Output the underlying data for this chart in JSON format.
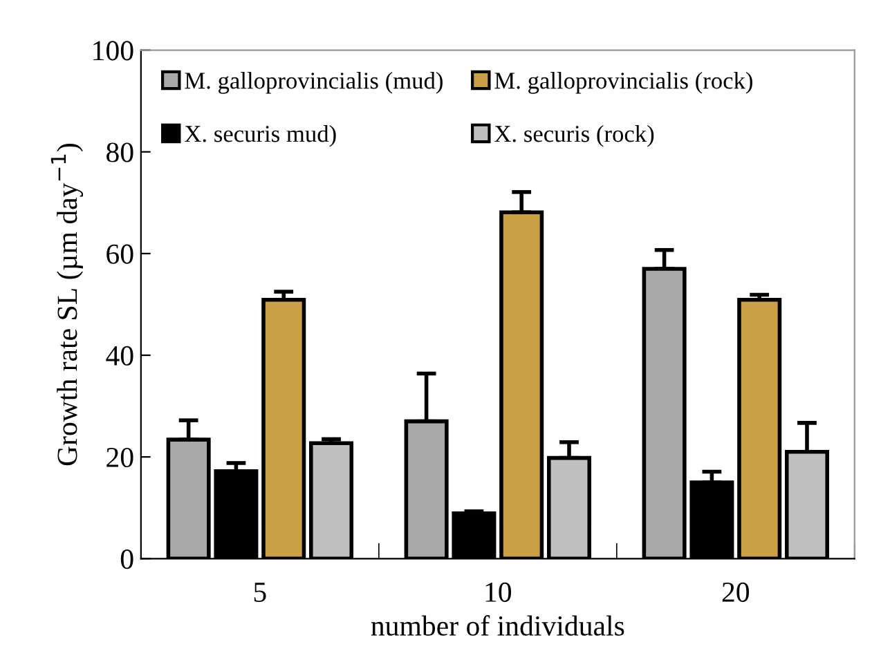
{
  "chart_data": {
    "type": "bar",
    "xlabel": "number of individuals",
    "ylabel": "Growth rate SL (µm day$^{−1}$)",
    "categories": [
      "5",
      "10",
      "20"
    ],
    "ylim": [
      0,
      100
    ],
    "yticks": [
      0,
      20,
      40,
      60,
      80,
      100
    ],
    "grid": false,
    "legend": "top left",
    "series": [
      {
        "name": "M. galloprovincialis (mud)",
        "color": "#a8a8a8",
        "values": [
          23.4,
          27.0,
          57.0
        ],
        "errors": [
          [
            23.4,
            27.2
          ],
          [
            27.0,
            36.4
          ],
          [
            57.0,
            60.7
          ]
        ]
      },
      {
        "name": "X. securis mud)",
        "color": "#000000",
        "values": [
          17.2,
          8.9,
          15.0
        ],
        "errors": [
          [
            17.2,
            18.8
          ],
          [
            8.9,
            9.3
          ],
          [
            15.0,
            17.1
          ]
        ]
      },
      {
        "name": "M. galloprovincialis (rock)",
        "color": "#c9a045",
        "values": [
          50.9,
          68.1,
          50.9
        ],
        "errors": [
          [
            50.9,
            52.5
          ],
          [
            68.1,
            72.1
          ],
          [
            50.9,
            51.9
          ]
        ]
      },
      {
        "name": "X. securis (rock)",
        "color": "#c0c0c0",
        "values": [
          22.7,
          19.8,
          21.0
        ],
        "errors": [
          [
            22.7,
            23.5
          ],
          [
            19.8,
            22.9
          ],
          [
            21.0,
            26.7
          ]
        ]
      }
    ]
  }
}
